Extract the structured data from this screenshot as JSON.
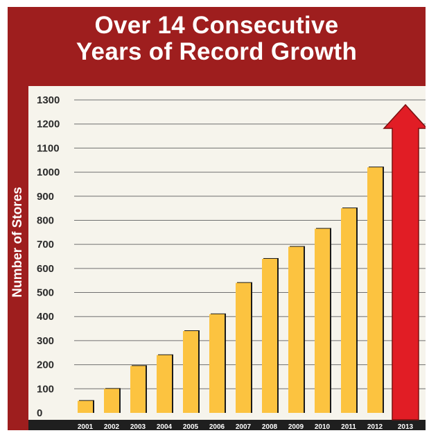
{
  "chart_data": {
    "type": "bar",
    "title_line1": "Over 14 Consecutive",
    "title_line2": "Years of Record  Growth",
    "xlabel": "",
    "ylabel": "Number of Stores",
    "ylim": [
      0,
      1300
    ],
    "yticks": [
      0,
      100,
      200,
      300,
      400,
      500,
      600,
      700,
      800,
      900,
      1000,
      1100,
      1200,
      1300
    ],
    "grid": true,
    "categories": [
      "2001",
      "2002",
      "2003",
      "2004",
      "2005",
      "2006",
      "2007",
      "2008",
      "2009",
      "2010",
      "2011",
      "2012",
      "2013"
    ],
    "values": [
      50,
      100,
      195,
      240,
      340,
      410,
      540,
      640,
      690,
      765,
      850,
      1020,
      null
    ],
    "projection": {
      "category": "2013",
      "value": 1280,
      "shape": "arrow"
    },
    "colors": {
      "bar": "#fcc340",
      "bar_shadow": "#1a1a1a",
      "arrow": "#e11d25",
      "arrow_outline": "#7a1010",
      "frame": "#9e1e1e",
      "plot_bg": "#f6f4ec",
      "grid": "#6f6f6f",
      "axis_band": "#1f1f1f"
    }
  }
}
